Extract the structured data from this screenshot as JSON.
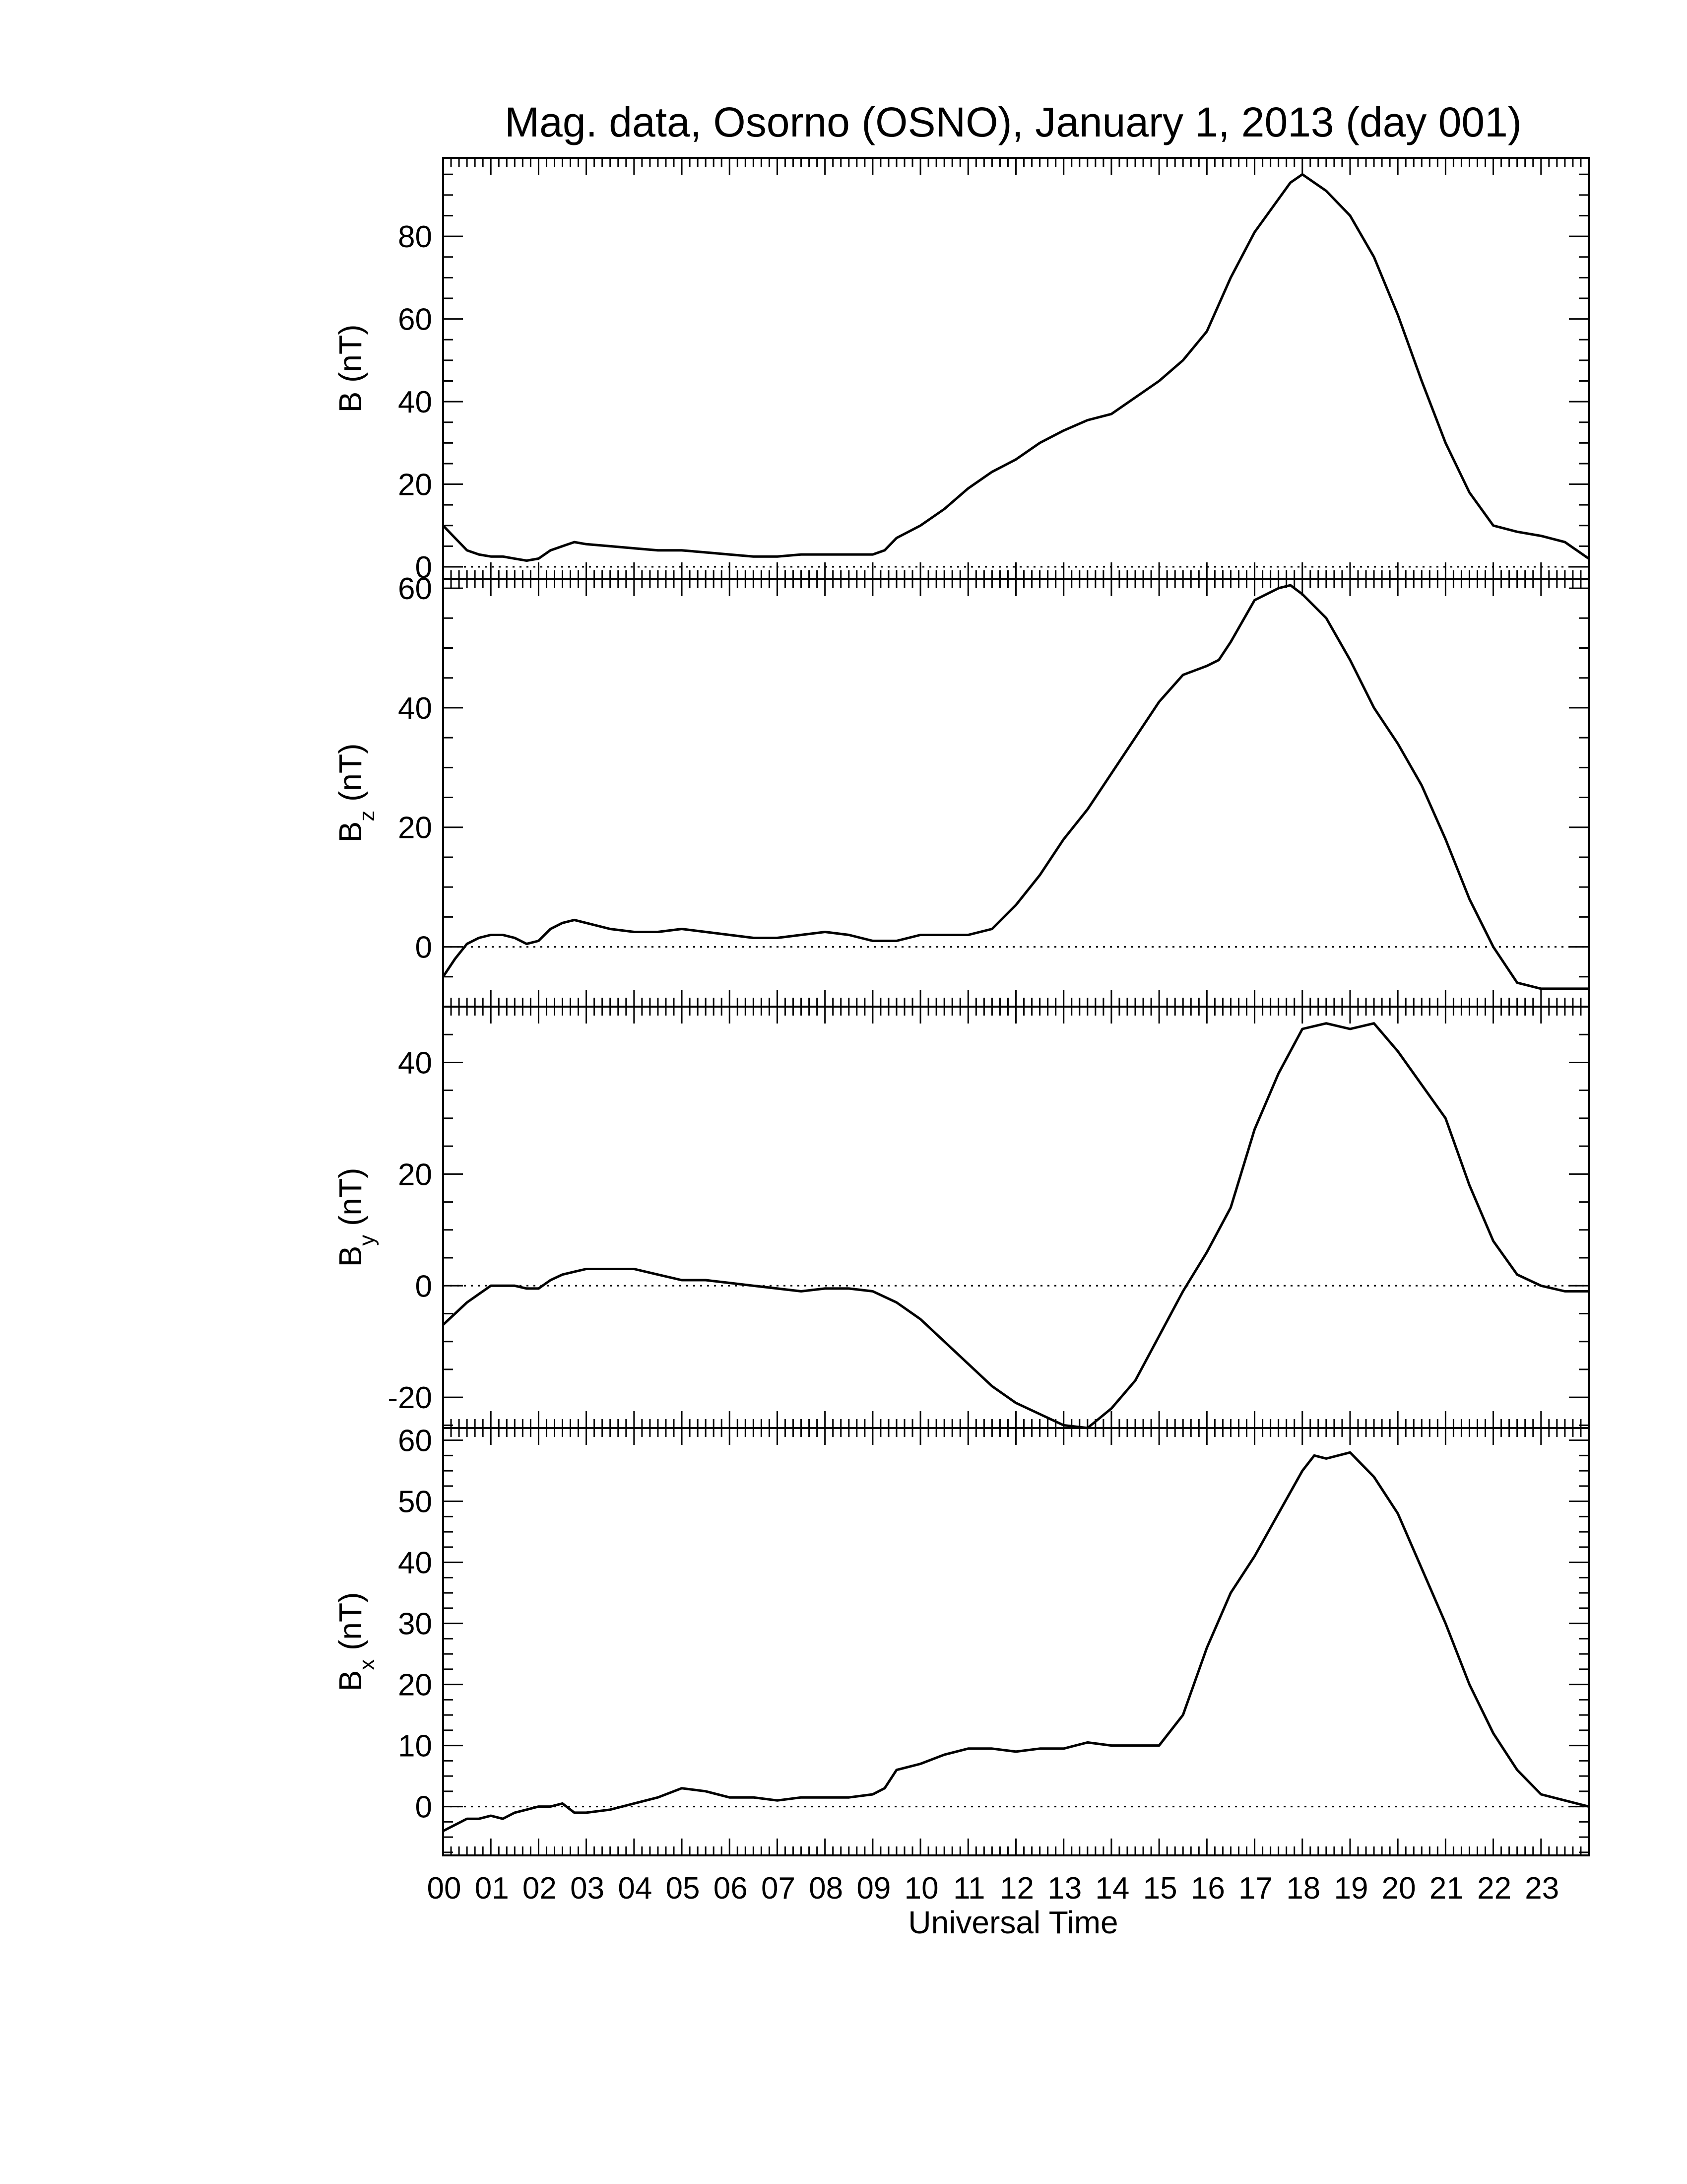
{
  "figure": {
    "title": "Mag. data, Osorno (OSNO), January 1, 2013 (day 001)",
    "xlabel": "Universal Time",
    "x_tick_labels": [
      "00",
      "01",
      "02",
      "03",
      "04",
      "05",
      "06",
      "07",
      "08",
      "09",
      "10",
      "11",
      "12",
      "13",
      "14",
      "15",
      "16",
      "17",
      "18",
      "19",
      "20",
      "21",
      "22",
      "23"
    ]
  },
  "chart_data": [
    {
      "type": "line",
      "ylabel": "B (nT)",
      "ylabel_main": "B",
      "ylabel_sub": "",
      "ylabel_unit": " (nT)",
      "xlim": [
        0,
        24
      ],
      "ylim": [
        -3,
        99
      ],
      "yticks": [
        0,
        20,
        40,
        60,
        80
      ],
      "zero_line": true,
      "color": "#000000",
      "series": [
        {
          "x": [
            0,
            0.25,
            0.5,
            0.75,
            1,
            1.25,
            1.5,
            1.75,
            2,
            2.25,
            2.5,
            2.75,
            3,
            3.5,
            4,
            4.5,
            5,
            5.5,
            6,
            6.5,
            7,
            7.5,
            8,
            8.5,
            9,
            9.25,
            9.5,
            10,
            10.5,
            11,
            11.5,
            12,
            12.5,
            13,
            13.5,
            14,
            14.5,
            15,
            15.5,
            16,
            16.5,
            17,
            17.5,
            17.75,
            18,
            18.25,
            18.5,
            19,
            19.5,
            20,
            20.5,
            21,
            21.5,
            22,
            22.5,
            23,
            23.5,
            24
          ],
          "values": [
            10,
            7,
            4,
            3,
            2.5,
            2.5,
            2,
            1.5,
            2,
            4,
            5,
            6,
            5.5,
            5,
            4.5,
            4,
            4,
            3.5,
            3,
            2.5,
            2.5,
            3,
            3,
            3,
            3,
            4,
            7,
            10,
            14,
            19,
            23,
            26,
            30,
            33,
            35.5,
            37,
            41,
            45,
            50,
            57,
            70,
            81,
            89,
            93,
            95,
            93,
            91,
            85,
            75,
            61,
            45,
            30,
            18,
            10,
            8.5,
            7.5,
            6,
            2
          ]
        }
      ]
    },
    {
      "type": "line",
      "ylabel": "Bz (nT)",
      "ylabel_main": "B",
      "ylabel_sub": "z",
      "ylabel_unit": " (nT)",
      "xlim": [
        0,
        24
      ],
      "ylim": [
        -10,
        61.5
      ],
      "yticks": [
        0,
        20,
        40,
        60
      ],
      "zero_line": true,
      "color": "#000000",
      "series": [
        {
          "x": [
            0,
            0.25,
            0.5,
            0.75,
            1,
            1.25,
            1.5,
            1.75,
            2,
            2.25,
            2.5,
            2.75,
            3,
            3.5,
            4,
            4.5,
            5,
            5.5,
            6,
            6.5,
            7,
            7.5,
            8,
            8.5,
            9,
            9.5,
            10,
            10.5,
            11,
            11.5,
            12,
            12.5,
            13,
            13.5,
            14,
            14.5,
            15,
            15.5,
            16,
            16.25,
            16.5,
            17,
            17.5,
            17.75,
            18,
            18.5,
            19,
            19.5,
            20,
            20.5,
            21,
            21.5,
            22,
            22.5,
            23,
            23.5,
            24
          ],
          "values": [
            -5,
            -2,
            0.5,
            1.5,
            2,
            2,
            1.5,
            0.5,
            1,
            3,
            4,
            4.5,
            4,
            3,
            2.5,
            2.5,
            3,
            2.5,
            2,
            1.5,
            1.5,
            2,
            2.5,
            2,
            1,
            1,
            2,
            2,
            2,
            3,
            7,
            12,
            18,
            23,
            29,
            35,
            41,
            45.5,
            47,
            48,
            51,
            58,
            60,
            60.5,
            59,
            55,
            48,
            40,
            34,
            27,
            18,
            8,
            0,
            -6,
            -7,
            -7,
            -7
          ]
        }
      ]
    },
    {
      "type": "line",
      "ylabel": "By (nT)",
      "ylabel_main": "B",
      "ylabel_sub": "y",
      "ylabel_unit": " (nT)",
      "xlim": [
        0,
        24
      ],
      "ylim": [
        -25.5,
        50
      ],
      "yticks": [
        -20,
        0,
        20,
        40
      ],
      "zero_line": true,
      "color": "#000000",
      "series": [
        {
          "x": [
            0,
            0.25,
            0.5,
            0.75,
            1,
            1.25,
            1.5,
            1.75,
            2,
            2.25,
            2.5,
            2.75,
            3,
            3.5,
            4,
            4.5,
            5,
            5.5,
            6,
            6.5,
            7,
            7.5,
            8,
            8.5,
            9,
            9.5,
            10,
            10.5,
            11,
            11.5,
            12,
            12.5,
            13,
            13.5,
            14,
            14.5,
            15,
            15.5,
            16,
            16.5,
            17,
            17.5,
            18,
            18.5,
            19,
            19.5,
            20,
            20.5,
            21,
            21.5,
            22,
            22.5,
            23,
            23.5,
            24
          ],
          "values": [
            -7,
            -5,
            -3,
            -1.5,
            0,
            0,
            0,
            -0.5,
            -0.5,
            1,
            2,
            2.5,
            3,
            3,
            3,
            2,
            1,
            1,
            0.5,
            0,
            -0.5,
            -1,
            -0.5,
            -0.5,
            -1,
            -3,
            -6,
            -10,
            -14,
            -18,
            -21,
            -23,
            -25,
            -25.5,
            -22,
            -17,
            -9,
            -1,
            6,
            14,
            28,
            38,
            46,
            47,
            46,
            47,
            42,
            36,
            30,
            18,
            8,
            2,
            0,
            -1,
            -1
          ]
        }
      ]
    },
    {
      "type": "line",
      "ylabel": "Bx (nT)",
      "ylabel_main": "B",
      "ylabel_sub": "x",
      "ylabel_unit": " (nT)",
      "xlim": [
        0,
        24
      ],
      "ylim": [
        -8,
        62
      ],
      "yticks": [
        0,
        10,
        20,
        30,
        40,
        50,
        60
      ],
      "zero_line": true,
      "color": "#000000",
      "series": [
        {
          "x": [
            0,
            0.25,
            0.5,
            0.75,
            1,
            1.25,
            1.5,
            1.75,
            2,
            2.25,
            2.5,
            2.75,
            3,
            3.5,
            4,
            4.5,
            5,
            5.5,
            6,
            6.5,
            7,
            7.5,
            8,
            8.5,
            9,
            9.25,
            9.5,
            10,
            10.5,
            11,
            11.5,
            12,
            12.5,
            13,
            13.5,
            14,
            14.5,
            15,
            15.5,
            16,
            16.5,
            17,
            17.5,
            18,
            18.25,
            18.5,
            19,
            19.5,
            20,
            20.5,
            21,
            21.5,
            22,
            22.5,
            23,
            23.5,
            24
          ],
          "values": [
            -4,
            -3,
            -2,
            -2,
            -1.5,
            -2,
            -1,
            -0.5,
            0,
            0,
            0.5,
            -1,
            -1,
            -0.5,
            0.5,
            1.5,
            3,
            2.5,
            1.5,
            1.5,
            1,
            1.5,
            1.5,
            1.5,
            2,
            3,
            6,
            7,
            8.5,
            9.5,
            9.5,
            9,
            9.5,
            9.5,
            10.5,
            10,
            10,
            10,
            15,
            26,
            35,
            41,
            48,
            55,
            57.5,
            57,
            58,
            54,
            48,
            39,
            30,
            20,
            12,
            6,
            2,
            1,
            0
          ]
        }
      ]
    }
  ]
}
